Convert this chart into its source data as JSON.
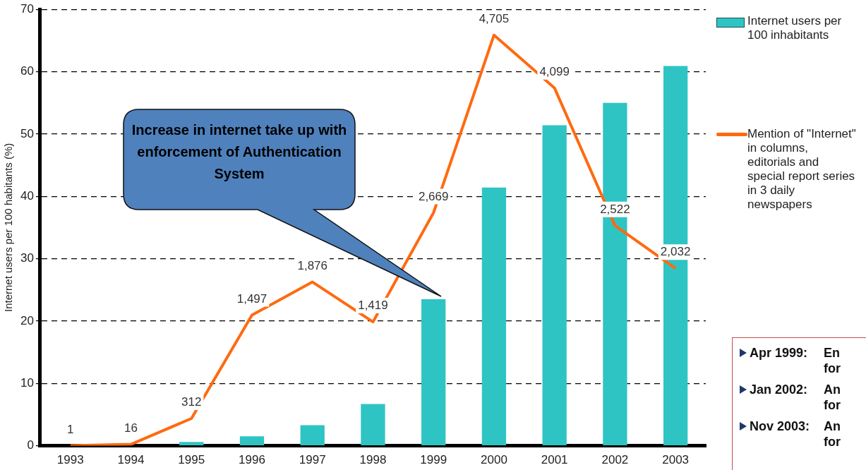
{
  "chart_data": {
    "type": "bar",
    "categories": [
      "1993",
      "1994",
      "1995",
      "1996",
      "1997",
      "1998",
      "1999",
      "2000",
      "2001",
      "2002",
      "2003"
    ],
    "ylabel": "Internet users per 100 habitants (%)",
    "ylim": [
      0,
      70
    ],
    "yticks": [
      0,
      10,
      20,
      30,
      40,
      50,
      60,
      70
    ],
    "y2lim": [
      0,
      5000
    ],
    "grid": "y",
    "legend": "right",
    "series": [
      {
        "name": "Internet users per 100 inhabitants",
        "color": "#2fc4c4",
        "values": [
          0,
          0,
          0.6,
          1.5,
          3.3,
          6.7,
          23.5,
          41.4,
          51.4,
          55.0,
          60.9
        ]
      },
      {
        "name": "Mention of \"Internet\" in columns, editorials and special report series in 3 daily newspapers",
        "type": "line",
        "axis": "y2",
        "color": "#ff6a10",
        "marker": "none",
        "values": [
          1,
          16,
          312,
          1497,
          1876,
          1419,
          2669,
          4705,
          4099,
          2522,
          2032
        ],
        "value_labels": [
          "1",
          "16",
          "312",
          "1,497",
          "1,876",
          "1,419",
          "2,669",
          "4,705",
          "4,099",
          "2,522",
          "2,032"
        ]
      }
    ],
    "annotations": [
      "Increase in internet take up with enforcement of Authentication System",
      "Apr 1999:",
      "En",
      "for",
      "Jan 2002:",
      "An",
      "for",
      "Nov 2003:",
      "An",
      "for"
    ]
  }
}
